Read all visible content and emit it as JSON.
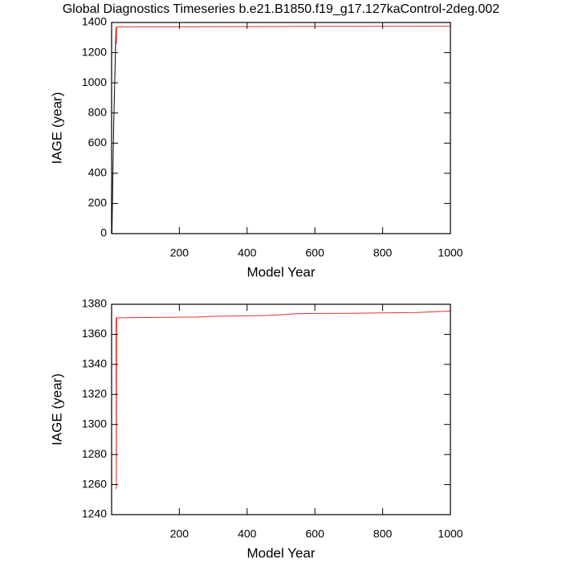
{
  "chart_data": [
    {
      "type": "line",
      "title": "Global Diagnostics Timeseries b.e21.B1850.f19_g17.127kaControl-2deg.002",
      "xlabel": "Model Year",
      "ylabel": "IAGE (year)",
      "xlim": [
        0,
        1000
      ],
      "xticks": [
        200,
        400,
        600,
        800,
        1000
      ],
      "ylim": [
        0,
        1400
      ],
      "yticks": [
        0,
        200,
        400,
        600,
        800,
        1000,
        1200,
        1400
      ],
      "series": [
        {
          "color": "#000000",
          "x": [
            1,
            6,
            13
          ],
          "values": [
            0,
            700,
            1370
          ]
        },
        {
          "color": "#e8302a",
          "x": [
            13,
            14,
            15,
            16,
            100,
            250,
            300,
            450,
            500,
            550,
            700,
            900,
            1000
          ],
          "values": [
            1371,
            1257,
            1371,
            1371,
            1371.2,
            1371.5,
            1372,
            1372.5,
            1373,
            1373.8,
            1374,
            1374.5,
            1375.5
          ]
        }
      ]
    },
    {
      "type": "line",
      "xlabel": "Model Year",
      "ylabel": "IAGE (year)",
      "xlim": [
        0,
        1000
      ],
      "xticks": [
        200,
        400,
        600,
        800,
        1000
      ],
      "ylim": [
        1240,
        1380
      ],
      "yticks": [
        1240,
        1260,
        1280,
        1300,
        1320,
        1340,
        1360,
        1380
      ],
      "series": [
        {
          "color": "#e8302a",
          "x": [
            13,
            14,
            15,
            16,
            100,
            250,
            300,
            450,
            500,
            550,
            700,
            900,
            1000
          ],
          "values": [
            1371,
            1257,
            1371,
            1371,
            1371.2,
            1371.5,
            1372,
            1372.5,
            1373,
            1373.8,
            1374,
            1374.5,
            1375.5
          ]
        }
      ]
    }
  ]
}
